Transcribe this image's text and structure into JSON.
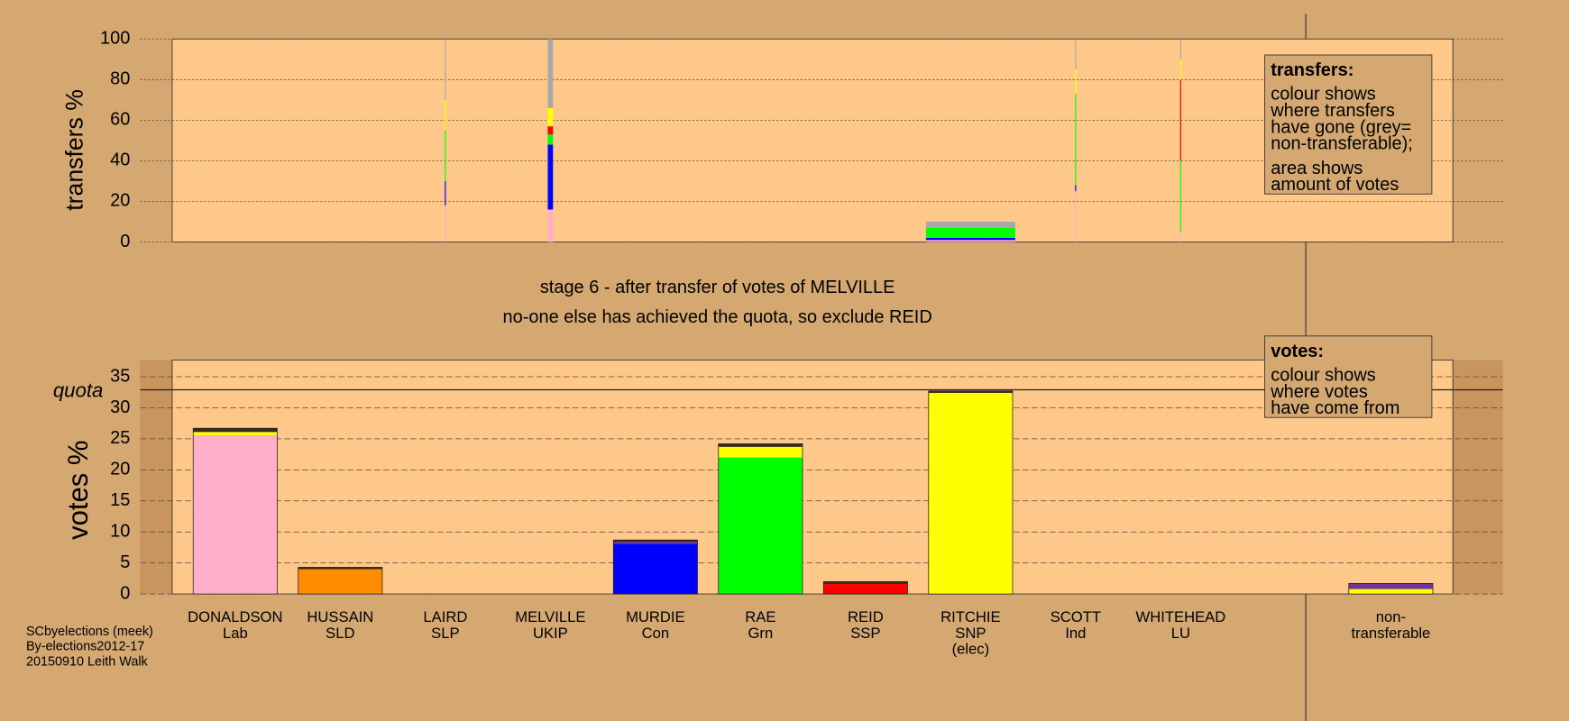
{
  "chart_data": [
    {
      "type": "bar",
      "stacked": true,
      "ylabel": "transfers %",
      "ylim": [
        0,
        100
      ],
      "yticks": [
        0,
        20,
        40,
        60,
        80,
        100
      ],
      "grid": true,
      "bar_widths": [
        0,
        0,
        0.01,
        0.05,
        0,
        0,
        0,
        0.85,
        0.01,
        0.01
      ],
      "series": [
        {
          "color": "#ffaec9",
          "values": [
            0,
            0,
            18,
            16,
            0,
            0,
            0,
            1,
            25,
            5
          ]
        },
        {
          "color": "#0000ff",
          "values": [
            0,
            0,
            12,
            32,
            0,
            0,
            0,
            1,
            3,
            0
          ]
        },
        {
          "color": "#00ff00",
          "values": [
            0,
            0,
            25,
            5,
            0,
            0,
            0,
            5,
            45,
            35
          ]
        },
        {
          "color": "#ff0000",
          "values": [
            0,
            0,
            0,
            4,
            0,
            0,
            0,
            0,
            0,
            40
          ]
        },
        {
          "color": "#ffff00",
          "values": [
            0,
            0,
            15,
            9,
            0,
            0,
            0,
            0,
            12,
            10
          ]
        },
        {
          "color": "#a8a8a8",
          "values": [
            0,
            0,
            30,
            34,
            0,
            0,
            0,
            3,
            15,
            10
          ]
        }
      ],
      "note": {
        "title": "transfers:",
        "lines": [
          "colour shows",
          "where transfers",
          "have gone (grey=",
          "non-transferable);",
          "area shows",
          "amount of votes"
        ]
      }
    },
    {
      "type": "bar",
      "stacked": true,
      "ylabel": "votes %",
      "ylim": [
        0,
        37.7
      ],
      "yticks": [
        0,
        5,
        10,
        15,
        20,
        25,
        30,
        35
      ],
      "grid": true,
      "quota": 32.9,
      "quota_label": "quota",
      "categories": [
        [
          "DONALDSON",
          "Lab"
        ],
        [
          "HUSSAIN",
          "SLD"
        ],
        [
          "LAIRD",
          "SLP"
        ],
        [
          "MELVILLE",
          "UKIP"
        ],
        [
          "MURDIE",
          "Con"
        ],
        [
          "RAE",
          "Grn"
        ],
        [
          "REID",
          "SSP"
        ],
        [
          "RITCHIE",
          "SNP",
          "(elec)"
        ],
        [
          "SCOTT",
          "Ind"
        ],
        [
          "WHITEHEAD",
          "LU"
        ],
        [
          "non-",
          "transferable"
        ]
      ],
      "series": [
        {
          "color": "#ffaec9",
          "values": [
            25.6,
            0,
            0,
            0,
            0,
            0,
            0,
            0,
            0,
            0,
            0
          ]
        },
        {
          "color": "#ff8c00",
          "values": [
            0,
            4.0,
            0,
            0,
            0,
            0,
            0,
            0,
            0,
            0,
            0
          ]
        },
        {
          "color": "#0000ff",
          "values": [
            0,
            0,
            0,
            0,
            8.1,
            0,
            0,
            0,
            0,
            0,
            0
          ]
        },
        {
          "color": "#00ff00",
          "values": [
            0,
            0,
            0,
            0,
            0,
            22,
            0,
            0,
            0,
            0,
            0
          ]
        },
        {
          "color": "#ff0000",
          "values": [
            0,
            0,
            0,
            0,
            0,
            0,
            1.6,
            0,
            0,
            0,
            0
          ]
        },
        {
          "color": "#ffff00",
          "values": [
            0.5,
            0,
            0,
            0,
            0,
            1.7,
            0,
            32.4,
            0,
            0,
            0.8
          ]
        },
        {
          "color": "#7030a0",
          "values": [
            0,
            0,
            0,
            0,
            0.3,
            0,
            0,
            0,
            0,
            0,
            0.8
          ]
        },
        {
          "color": "#3a2a1a",
          "values": [
            0.6,
            0.3,
            0,
            0,
            0.3,
            0.5,
            0.4,
            0.3,
            0,
            0,
            0.1
          ]
        }
      ],
      "note": {
        "title": "votes:",
        "lines": [
          "colour shows",
          "where votes",
          "have come from"
        ]
      }
    }
  ],
  "captions": [
    "stage 6 - after transfer of votes of MELVILLE",
    "no-one else has achieved the quota, so exclude REID"
  ],
  "footer": [
    "SCbyelections (meek)",
    "By-elections2012-17",
    "20150910 Leith Walk"
  ]
}
